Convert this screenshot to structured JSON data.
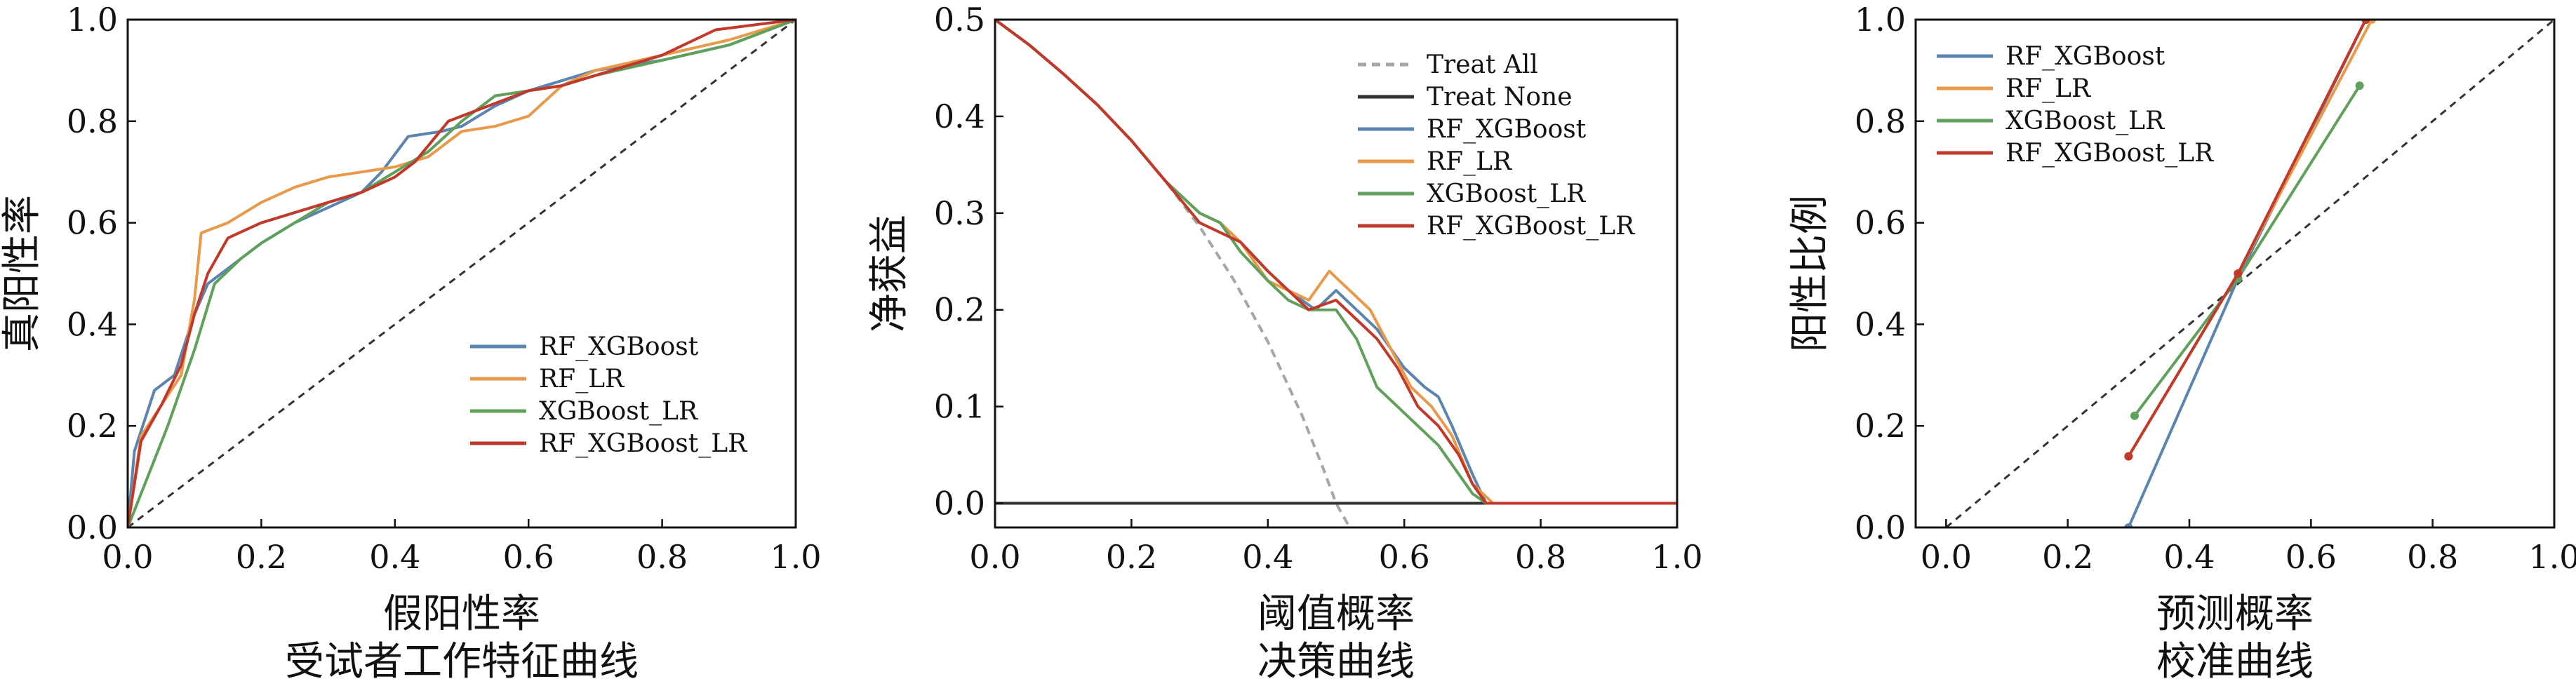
{
  "colors": {
    "RF_XGBoost": "#5b84b1",
    "RF_LR": "#e8994a",
    "XGBoost_LR": "#5fa05a",
    "RF_XGBoost_LR": "#c0392b",
    "treat_all": "#a6a6a6",
    "treat_none": "#333333",
    "diagonal": "#333333"
  },
  "chart_data": [
    {
      "type": "line",
      "xlabel": "假阳性率",
      "caption": "受试者工作特征曲线",
      "ylabel": "真阳性率",
      "xlim": [
        0.0,
        1.0
      ],
      "ylim": [
        0.0,
        1.0
      ],
      "xticks": [
        "0.0",
        "0.2",
        "0.4",
        "0.6",
        "0.8",
        "1.0"
      ],
      "yticks": [
        "0.0",
        "0.2",
        "0.4",
        "0.6",
        "0.8",
        "1.0"
      ],
      "legend_position": "center-right",
      "reference_line": {
        "style": "dashed",
        "x": [
          0,
          1
        ],
        "y": [
          0,
          1
        ]
      },
      "series": [
        {
          "name": "RF_XGBoost",
          "x": [
            0,
            0.01,
            0.04,
            0.07,
            0.1,
            0.12,
            0.15,
            0.2,
            0.25,
            0.3,
            0.35,
            0.38,
            0.42,
            0.47,
            0.5,
            0.55,
            0.6,
            0.65,
            0.7,
            0.8,
            0.9,
            1.0
          ],
          "y": [
            0,
            0.15,
            0.27,
            0.3,
            0.42,
            0.48,
            0.51,
            0.56,
            0.6,
            0.63,
            0.66,
            0.7,
            0.77,
            0.78,
            0.79,
            0.83,
            0.86,
            0.88,
            0.9,
            0.92,
            0.95,
            1.0
          ]
        },
        {
          "name": "RF_LR",
          "x": [
            0,
            0.02,
            0.05,
            0.08,
            0.1,
            0.11,
            0.15,
            0.2,
            0.25,
            0.3,
            0.35,
            0.4,
            0.45,
            0.5,
            0.55,
            0.6,
            0.65,
            0.7,
            0.8,
            0.9,
            1.0
          ],
          "y": [
            0,
            0.18,
            0.24,
            0.3,
            0.45,
            0.58,
            0.6,
            0.64,
            0.67,
            0.69,
            0.7,
            0.71,
            0.73,
            0.78,
            0.79,
            0.81,
            0.87,
            0.9,
            0.93,
            0.96,
            1.0
          ]
        },
        {
          "name": "XGBoost_LR",
          "x": [
            0,
            0.03,
            0.06,
            0.1,
            0.13,
            0.17,
            0.2,
            0.25,
            0.3,
            0.35,
            0.4,
            0.45,
            0.5,
            0.55,
            0.6,
            0.65,
            0.7,
            0.8,
            0.9,
            1.0
          ],
          "y": [
            0,
            0.1,
            0.2,
            0.35,
            0.48,
            0.53,
            0.56,
            0.6,
            0.64,
            0.66,
            0.7,
            0.74,
            0.8,
            0.85,
            0.86,
            0.87,
            0.89,
            0.92,
            0.95,
            1.0
          ]
        },
        {
          "name": "RF_XGBoost_LR",
          "x": [
            0,
            0.02,
            0.05,
            0.08,
            0.1,
            0.12,
            0.15,
            0.2,
            0.25,
            0.3,
            0.35,
            0.4,
            0.43,
            0.48,
            0.52,
            0.56,
            0.6,
            0.65,
            0.7,
            0.8,
            0.88,
            1.0
          ],
          "y": [
            0,
            0.17,
            0.24,
            0.32,
            0.42,
            0.5,
            0.57,
            0.6,
            0.62,
            0.64,
            0.66,
            0.69,
            0.72,
            0.8,
            0.82,
            0.84,
            0.86,
            0.87,
            0.89,
            0.93,
            0.98,
            1.0
          ]
        }
      ]
    },
    {
      "type": "line",
      "xlabel": "阈值概率",
      "caption": "决策曲线",
      "ylabel": "净获益",
      "xlim": [
        0.0,
        1.0
      ],
      "ylim": [
        -0.025,
        0.5
      ],
      "xticks": [
        "0.0",
        "0.2",
        "0.4",
        "0.6",
        "0.8",
        "1.0"
      ],
      "yticks": [
        "0.0",
        "0.1",
        "0.2",
        "0.3",
        "0.4",
        "0.5"
      ],
      "legend_position": "top-right",
      "series": [
        {
          "name": "Treat All",
          "style": "dashed",
          "x": [
            0,
            0.05,
            0.1,
            0.15,
            0.2,
            0.25,
            0.3,
            0.35,
            0.4,
            0.45,
            0.48,
            0.5,
            0.52
          ],
          "y": [
            0.5,
            0.474,
            0.444,
            0.412,
            0.375,
            0.333,
            0.286,
            0.231,
            0.167,
            0.091,
            0.038,
            0.0,
            -0.025
          ]
        },
        {
          "name": "Treat None",
          "x": [
            0,
            1.0
          ],
          "y": [
            0,
            0
          ]
        },
        {
          "name": "RF_XGBoost",
          "x": [
            0,
            0.05,
            0.1,
            0.15,
            0.2,
            0.25,
            0.3,
            0.33,
            0.36,
            0.4,
            0.43,
            0.47,
            0.5,
            0.53,
            0.56,
            0.6,
            0.63,
            0.65,
            0.67,
            0.7,
            0.72,
            0.76,
            1.0
          ],
          "y": [
            0.5,
            0.474,
            0.444,
            0.412,
            0.375,
            0.333,
            0.3,
            0.29,
            0.27,
            0.24,
            0.22,
            0.2,
            0.22,
            0.2,
            0.18,
            0.14,
            0.12,
            0.11,
            0.08,
            0.03,
            0.0,
            0.0,
            0.0
          ]
        },
        {
          "name": "RF_LR",
          "x": [
            0,
            0.05,
            0.1,
            0.15,
            0.2,
            0.25,
            0.3,
            0.33,
            0.36,
            0.4,
            0.43,
            0.46,
            0.49,
            0.52,
            0.55,
            0.58,
            0.61,
            0.64,
            0.67,
            0.7,
            0.73,
            0.76,
            1.0
          ],
          "y": [
            0.5,
            0.474,
            0.444,
            0.412,
            0.375,
            0.333,
            0.3,
            0.29,
            0.27,
            0.23,
            0.22,
            0.21,
            0.24,
            0.22,
            0.2,
            0.16,
            0.12,
            0.1,
            0.07,
            0.02,
            0.0,
            0.0,
            0.0
          ]
        },
        {
          "name": "XGBoost_LR",
          "x": [
            0,
            0.05,
            0.1,
            0.15,
            0.2,
            0.25,
            0.3,
            0.33,
            0.36,
            0.4,
            0.43,
            0.46,
            0.5,
            0.53,
            0.56,
            0.59,
            0.62,
            0.65,
            0.68,
            0.7,
            0.72,
            0.76,
            1.0
          ],
          "y": [
            0.5,
            0.474,
            0.444,
            0.412,
            0.375,
            0.333,
            0.3,
            0.29,
            0.26,
            0.23,
            0.21,
            0.2,
            0.2,
            0.17,
            0.12,
            0.1,
            0.08,
            0.06,
            0.03,
            0.01,
            0.0,
            0.0,
            0.0
          ]
        },
        {
          "name": "RF_XGBoost_LR",
          "x": [
            0,
            0.05,
            0.1,
            0.15,
            0.2,
            0.25,
            0.3,
            0.33,
            0.36,
            0.4,
            0.43,
            0.46,
            0.5,
            0.53,
            0.56,
            0.59,
            0.62,
            0.65,
            0.68,
            0.7,
            0.72,
            0.76,
            1.0
          ],
          "y": [
            0.5,
            0.474,
            0.444,
            0.412,
            0.375,
            0.333,
            0.29,
            0.28,
            0.27,
            0.24,
            0.22,
            0.2,
            0.21,
            0.19,
            0.17,
            0.14,
            0.1,
            0.08,
            0.05,
            0.02,
            0.0,
            0.0,
            0.0
          ]
        }
      ]
    },
    {
      "type": "line",
      "xlabel": "预测概率",
      "caption": "校准曲线",
      "ylabel": "阳性比例",
      "xlim": [
        -0.05,
        1.0
      ],
      "ylim": [
        0.0,
        1.0
      ],
      "xticks": [
        "0.0",
        "0.2",
        "0.4",
        "0.6",
        "0.8",
        "1.0"
      ],
      "yticks": [
        "0.0",
        "0.2",
        "0.4",
        "0.6",
        "0.8",
        "1.0"
      ],
      "legend_position": "top-left",
      "reference_line": {
        "style": "dashed",
        "x": [
          0,
          1
        ],
        "y": [
          0,
          1
        ]
      },
      "series": [
        {
          "name": "RF_XGBoost",
          "x": [
            0.3,
            0.48,
            0.69
          ],
          "y": [
            0.0,
            0.49,
            1.0
          ]
        },
        {
          "name": "RF_LR",
          "x": [
            0.3,
            0.48,
            0.7
          ],
          "y": [
            0.14,
            0.5,
            1.0
          ]
        },
        {
          "name": "XGBoost_LR",
          "x": [
            0.31,
            0.48,
            0.68
          ],
          "y": [
            0.22,
            0.49,
            0.87
          ]
        },
        {
          "name": "RF_XGBoost_LR",
          "x": [
            0.3,
            0.48,
            0.69
          ],
          "y": [
            0.14,
            0.5,
            1.0
          ]
        }
      ]
    }
  ]
}
